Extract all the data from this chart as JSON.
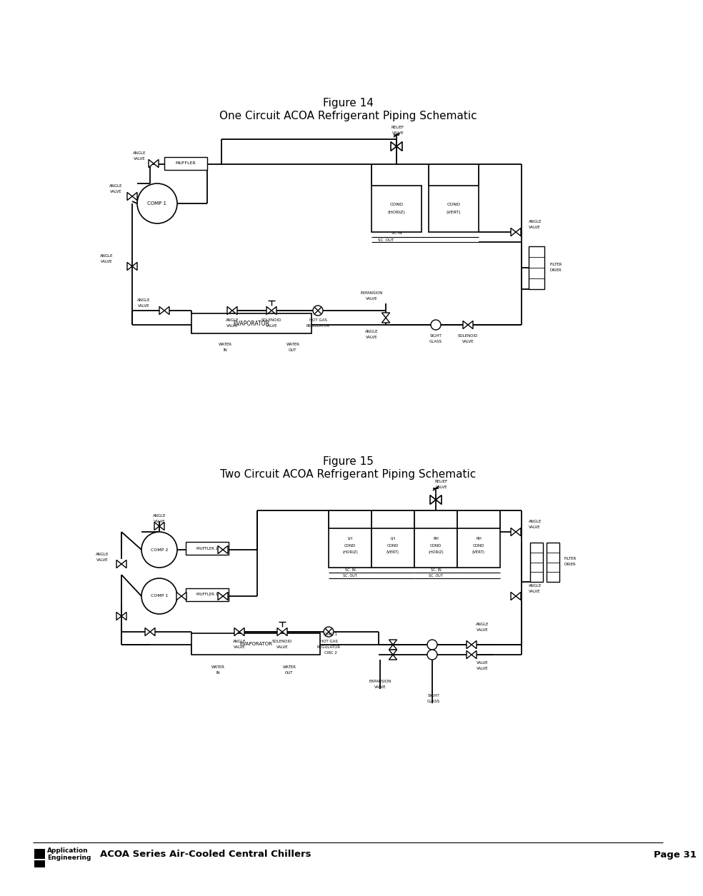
{
  "page_bg": "#ffffff",
  "title1": "Figure 14",
  "subtitle1": "One Circuit ACOA Refrigerant Piping Schematic",
  "title2": "Figure 15",
  "subtitle2": "Two Circuit ACOA Refrigerant Piping Schematic",
  "footer_product": "ACOA Series Air-Cooled Central Chillers",
  "footer_page": "Page 31",
  "lw": 1.3,
  "lw_thin": 0.8,
  "fs_title": 11,
  "fs_label": 4.5,
  "fs_footer": 9.5
}
